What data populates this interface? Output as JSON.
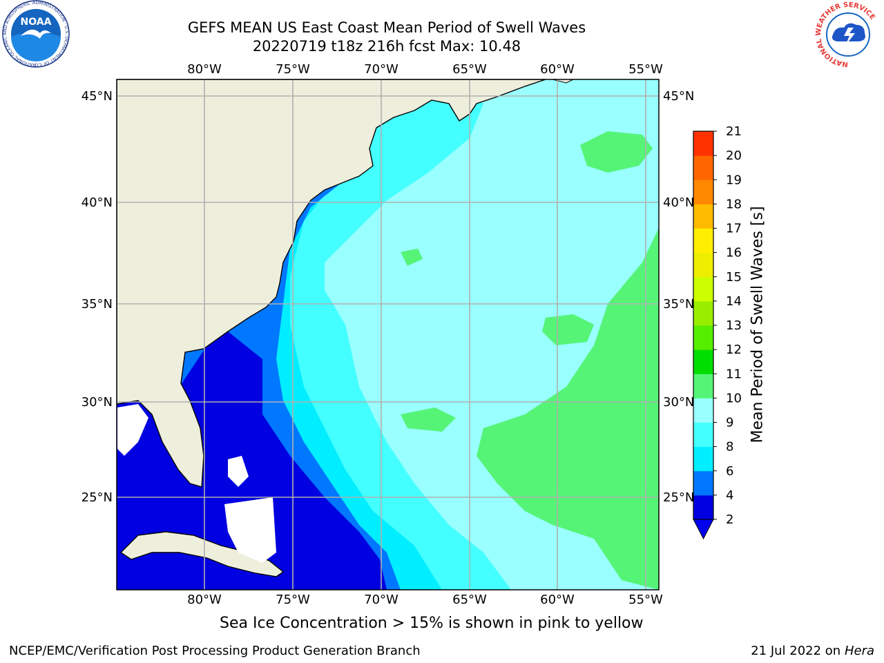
{
  "header": {
    "title": "GEFS MEAN US East Coast Mean Period of Swell Waves",
    "subtitle": "20220719 t18z 216h fcst   Max: 10.48"
  },
  "map": {
    "lon_labels": [
      "80°W",
      "75°W",
      "70°W",
      "65°W",
      "60°W",
      "55°W"
    ],
    "lat_labels": [
      "45°N",
      "40°N",
      "35°N",
      "30°N",
      "25°N"
    ],
    "colors": {
      "land": "#eeeedd",
      "grid": "#b0b0b0",
      "no_data": "#ffffff"
    }
  },
  "colorbar": {
    "label": "Mean Period of Swell Waves [s]",
    "ticks": [
      "2",
      "4",
      "6",
      "8",
      "9",
      "10",
      "11",
      "12",
      "13",
      "14",
      "15",
      "16",
      "17",
      "18",
      "19",
      "20",
      "21"
    ],
    "colors": [
      "#0000e0",
      "#0077ff",
      "#00eeff",
      "#44ffff",
      "#99ffff",
      "#55f477",
      "#00dd00",
      "#55ee00",
      "#99ee00",
      "#ccff00",
      "#eeee00",
      "#ffee00",
      "#ffbb00",
      "#ff8800",
      "#ff6600",
      "#ff3300",
      "#ff0000"
    ],
    "extend_color": "#0000ee"
  },
  "note": "Sea Ice Concentration > 15% is shown in pink to yellow",
  "footer": {
    "left": "NCEP/EMC/Verification Post Processing Product Generation Branch",
    "right_date": "21 Jul 2022 on",
    "right_host": "Hera"
  },
  "logos": {
    "noaa": {
      "text": "NOAA",
      "ring_text": "NATIONAL OCEANIC AND ATMOSPHERIC ADMINISTRATION · U.S. DEPARTMENT OF COMMERCE"
    },
    "nws": {
      "ring_text": "NATIONAL WEATHER SERVICE"
    }
  }
}
